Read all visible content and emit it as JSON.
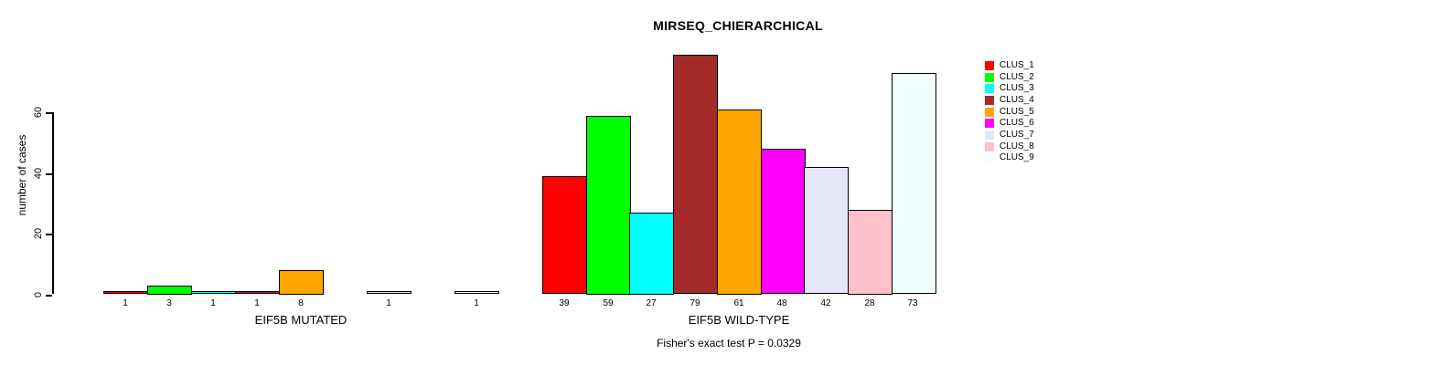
{
  "title": "MIRSEQ_CHIERARCHICAL",
  "footer": "Fisher's exact test P = 0.0329",
  "y_axis": {
    "label": "number of cases",
    "ticks": [
      0,
      20,
      40,
      60
    ]
  },
  "legend": {
    "items": [
      {
        "label": "CLUS_1",
        "color": "#FF0000"
      },
      {
        "label": "CLUS_2",
        "color": "#00FF00"
      },
      {
        "label": "CLUS_3",
        "color": "#00FFFF"
      },
      {
        "label": "CLUS_4",
        "color": "#A52A2A"
      },
      {
        "label": "CLUS_5",
        "color": "#FFA500"
      },
      {
        "label": "CLUS_6",
        "color": "#FF00FF"
      },
      {
        "label": "CLUS_7",
        "color": "#E6E6FA"
      },
      {
        "label": "CLUS_8",
        "color": "#FFC0CB"
      },
      {
        "label": "CLUS_9",
        "color": "#F0FFFF"
      }
    ]
  },
  "chart_data": {
    "type": "bar",
    "title": "MIRSEQ_CHIERARCHICAL",
    "ylabel": "number of cases",
    "xlabel": "",
    "ylim": [
      0,
      80
    ],
    "yticks": [
      0,
      20,
      40,
      60
    ],
    "grid": false,
    "legend_position": "top-right",
    "series": [
      "CLUS_1",
      "CLUS_2",
      "CLUS_3",
      "CLUS_4",
      "CLUS_5",
      "CLUS_6",
      "CLUS_7",
      "CLUS_8",
      "CLUS_9"
    ],
    "series_colors": [
      "#FF0000",
      "#00FF00",
      "#00FFFF",
      "#A52A2A",
      "#FFA500",
      "#FF00FF",
      "#E6E6FA",
      "#FFC0CB",
      "#F0FFFF"
    ],
    "groups": [
      {
        "label": "EIF5B MUTATED",
        "values": [
          1,
          3,
          1,
          1,
          8,
          0,
          1,
          0,
          1
        ]
      },
      {
        "label": "EIF5B WILD-TYPE",
        "values": [
          39,
          59,
          27,
          79,
          61,
          48,
          42,
          28,
          73
        ]
      }
    ],
    "annotation": "Fisher's exact test P = 0.0329",
    "zero_values_hidden": true
  }
}
